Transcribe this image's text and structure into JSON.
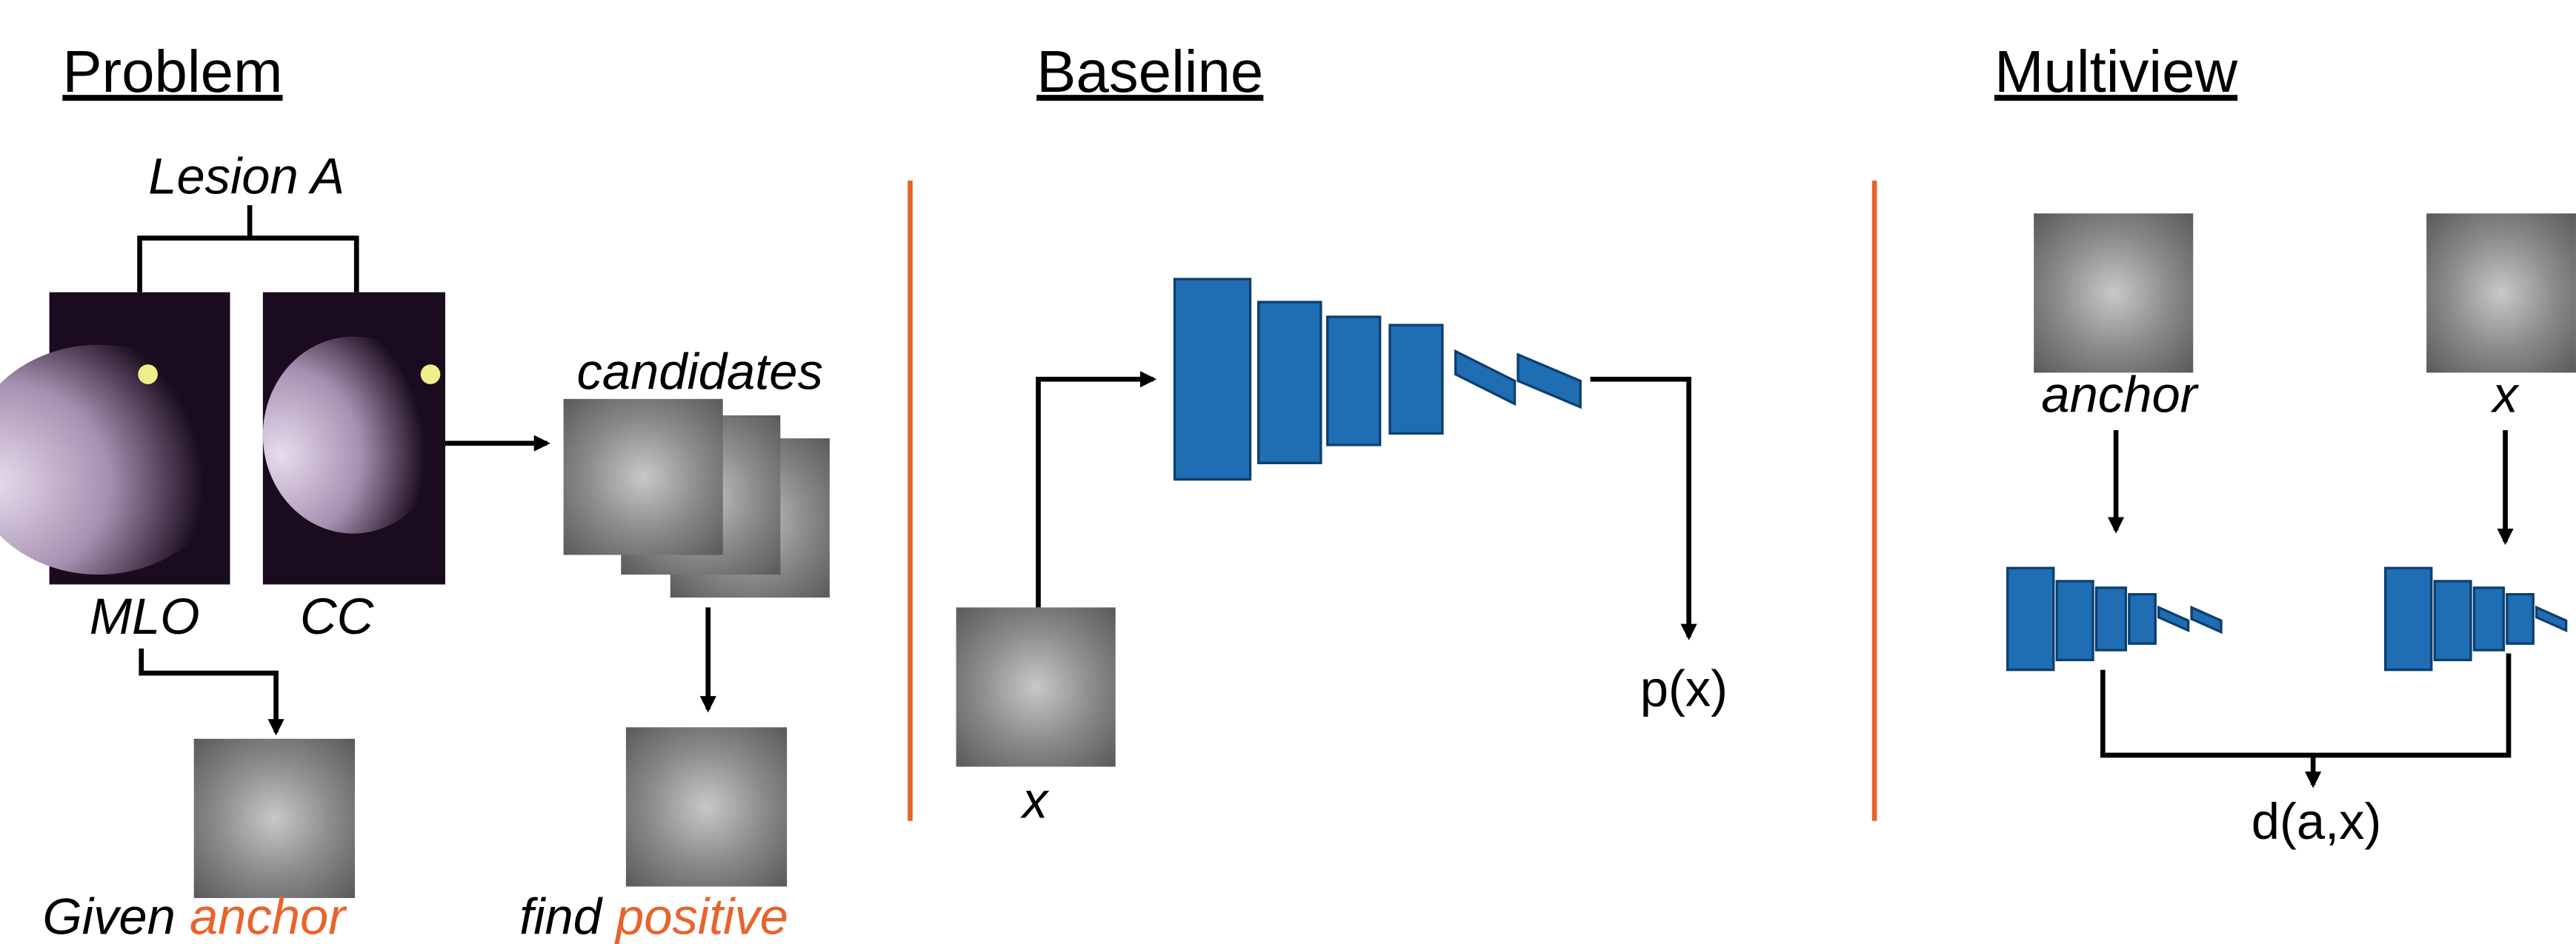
{
  "problem": {
    "title": "Problem",
    "lesion": "Lesion A",
    "views": [
      "MLO",
      "CC"
    ],
    "candidates": "candidates",
    "given": "Given",
    "anchor": "anchor",
    "find": "find",
    "positive": "positive"
  },
  "baseline": {
    "title": "Baseline",
    "input": "x",
    "output": "p(x)"
  },
  "multiview": {
    "title": "Multiview",
    "anchor": "anchor",
    "input": "x",
    "output": "d(a,x)"
  }
}
